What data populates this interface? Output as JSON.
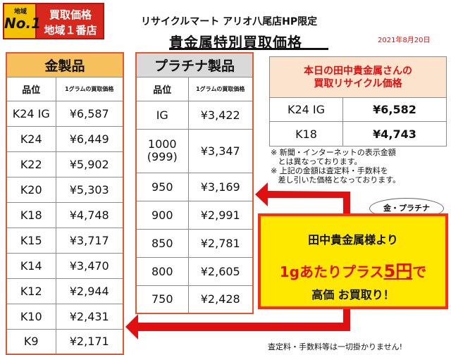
{
  "badge": {
    "region": "地域",
    "no1": "No.1",
    "line1": "買取価格",
    "line2": "地域１番店"
  },
  "header": {
    "store": "リサイクルマート アリオ八尾店HP限定",
    "title": "貴金属特別買取価格",
    "date": "2021年8月20日"
  },
  "gold": {
    "title": "金製品",
    "col_grade": "品位",
    "col_price": "1グラムの買取価格",
    "rows": [
      {
        "grade": "K24 IG",
        "price": "¥6,587"
      },
      {
        "grade": "K24",
        "price": "¥6,449"
      },
      {
        "grade": "K22",
        "price": "¥5,902"
      },
      {
        "grade": "K20",
        "price": "¥5,303"
      },
      {
        "grade": "K18",
        "price": "¥4,748"
      },
      {
        "grade": "K15",
        "price": "¥3,717"
      },
      {
        "grade": "K14",
        "price": "¥3,470"
      },
      {
        "grade": "K12",
        "price": "¥2,944"
      },
      {
        "grade": "K10",
        "price": "¥2,431"
      },
      {
        "grade": "K9",
        "price": "¥2,171"
      }
    ]
  },
  "platinum": {
    "title": "プラチナ製品",
    "col_grade": "品位",
    "col_price": "1グラムの買取価格",
    "row_ig": {
      "grade": "IG",
      "price": "¥3,422"
    },
    "row_1000": {
      "grade_line1": "1000",
      "grade_line2": "(999)",
      "price": "¥3,347"
    },
    "rows": [
      {
        "grade": "950",
        "price": "¥3,169"
      },
      {
        "grade": "900",
        "price": "¥2,991"
      },
      {
        "grade": "850",
        "price": "¥2,781"
      },
      {
        "grade": "800",
        "price": "¥2,605"
      },
      {
        "grade": "750",
        "price": "¥2,428"
      }
    ]
  },
  "today": {
    "line1": "本日の田中貴金属さんの",
    "line2": "買取リサイクル価格",
    "rows": [
      {
        "grade": "K24 IG",
        "price": "¥6,582"
      },
      {
        "grade": "K18",
        "price": "¥4,743"
      }
    ]
  },
  "notes": [
    "※ 新聞・インターネットの表示金額",
    "   とは異なっております。",
    "※ 上記の金額は査定料・手数料を",
    "   差し引いた価格となっております。"
  ],
  "bubble": "金・プラチナ",
  "promo": {
    "line1": "田中貴金属様より",
    "line2_a": "1gあたりプラス",
    "line2_b": "5円",
    "line2_c": "で",
    "line3": "高価 お買取り！"
  },
  "footer": "査定料・手数料等は一切掛かりません!",
  "colors": {
    "arrow": "#e01010",
    "promo_bg": "#ffe800",
    "gold_header": "#f6c15d",
    "plat_header": "#d9d9d9",
    "today_header": "#fbe3cd"
  }
}
